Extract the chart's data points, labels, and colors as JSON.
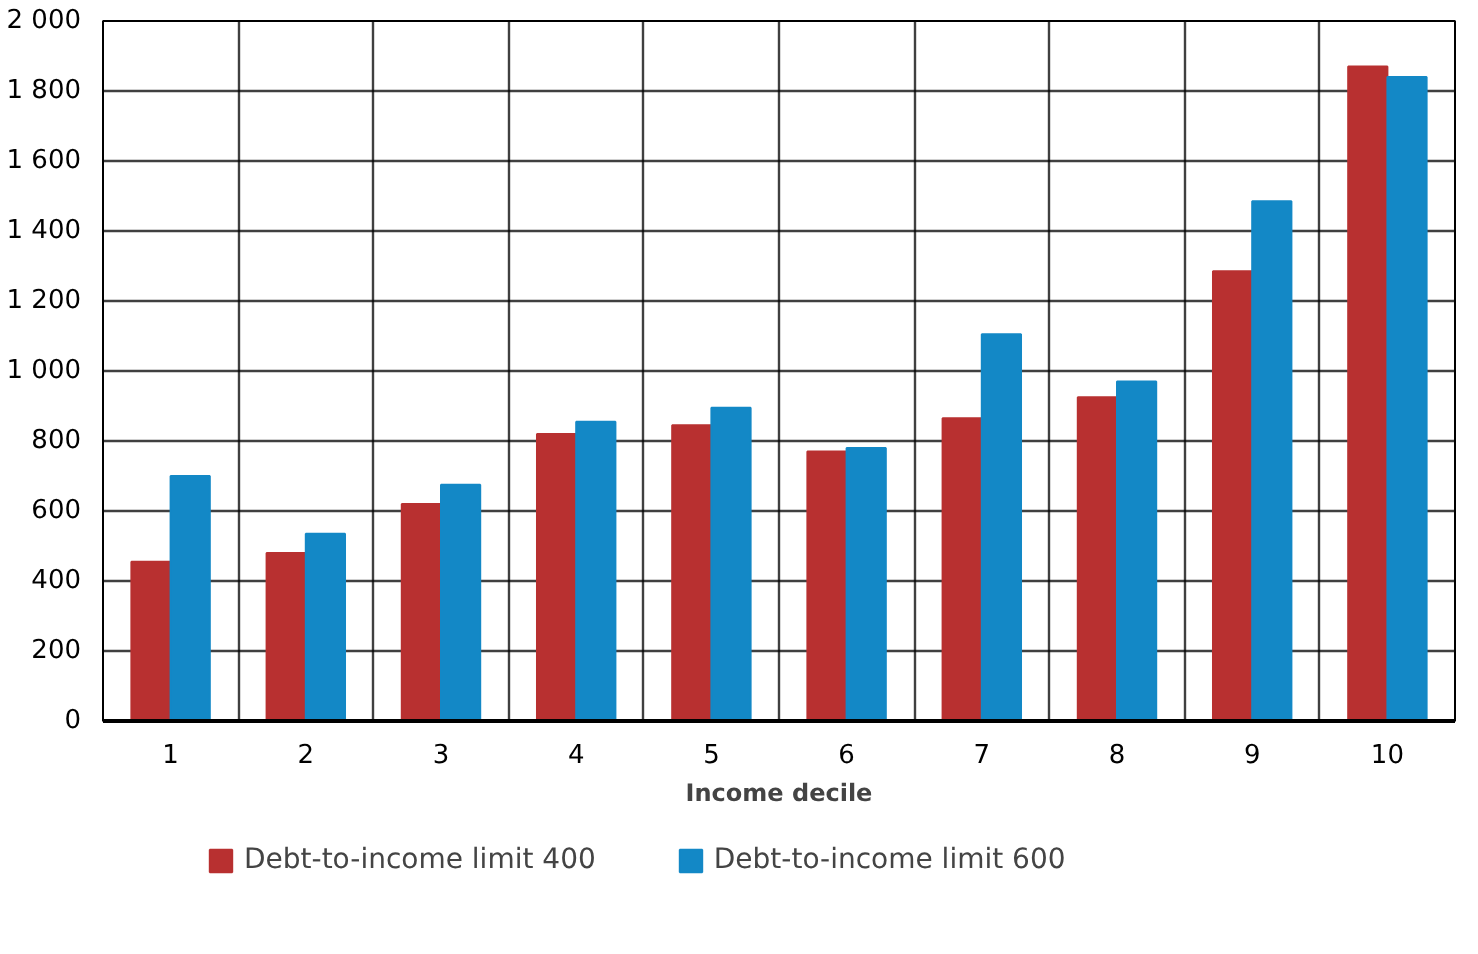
{
  "chart_data": {
    "type": "bar",
    "xlabel": "Income decile",
    "categories": [
      "1",
      "2",
      "3",
      "4",
      "5",
      "6",
      "7",
      "8",
      "9",
      "10"
    ],
    "series": [
      {
        "name": "Debt-to-income limit 400",
        "color": "#b83030",
        "values": [
          455,
          480,
          620,
          820,
          845,
          770,
          865,
          925,
          1285,
          1870
        ]
      },
      {
        "name": "Debt-to-income limit 600",
        "color": "#1388c6",
        "values": [
          700,
          535,
          675,
          855,
          895,
          780,
          1105,
          970,
          1485,
          1840
        ]
      }
    ],
    "ylim": [
      0,
      2000
    ],
    "yticks": [
      0,
      200,
      400,
      600,
      800,
      {
        "value": 1000,
        "label": "1 000"
      },
      {
        "value": 1200,
        "label": "1 200"
      },
      {
        "value": 1400,
        "label": "1 400"
      },
      {
        "value": 1600,
        "label": "1 600"
      },
      {
        "value": 1800,
        "label": "1 800"
      },
      {
        "value": 2000,
        "label": "2 000"
      }
    ],
    "grid": true,
    "legend": "bottom"
  }
}
